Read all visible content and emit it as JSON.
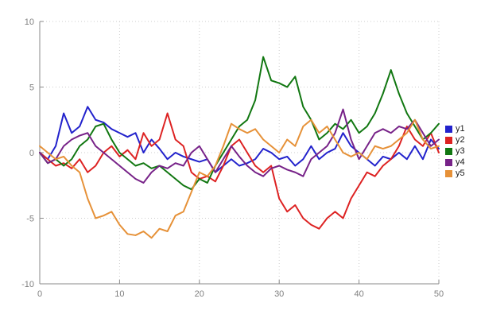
{
  "chart_data": {
    "type": "line",
    "title": "",
    "xlabel": "",
    "ylabel": "",
    "xlim": [
      0,
      50
    ],
    "ylim": [
      -10,
      10
    ],
    "x_ticks": [
      0,
      10,
      20,
      30,
      40,
      50
    ],
    "y_ticks": [
      -10,
      -5,
      0,
      5,
      10
    ],
    "grid": "dotted",
    "legend_position": "right-outside",
    "x": [
      0,
      1,
      2,
      3,
      4,
      5,
      6,
      7,
      8,
      9,
      10,
      11,
      12,
      13,
      14,
      15,
      16,
      17,
      18,
      19,
      20,
      21,
      22,
      23,
      24,
      25,
      26,
      27,
      28,
      29,
      30,
      31,
      32,
      33,
      34,
      35,
      36,
      37,
      38,
      39,
      40,
      41,
      42,
      43,
      44,
      45,
      46,
      47,
      48,
      49,
      50
    ],
    "series": [
      {
        "name": "y1",
        "color": "#2222cc",
        "values": [
          0.0,
          -0.5,
          0.5,
          3.0,
          1.5,
          2.0,
          3.5,
          2.5,
          2.3,
          1.8,
          1.5,
          1.2,
          1.5,
          0.0,
          1.0,
          0.3,
          -0.5,
          0.0,
          -0.3,
          -0.5,
          -0.7,
          -0.5,
          -1.5,
          -1.0,
          -0.5,
          -1.0,
          -0.8,
          -0.5,
          0.3,
          0.0,
          -0.5,
          -0.3,
          -1.0,
          -0.5,
          0.5,
          -0.5,
          0.0,
          0.3,
          1.5,
          0.5,
          0.0,
          -0.5,
          -1.0,
          -0.3,
          -0.5,
          0.0,
          -0.5,
          0.5,
          -0.5,
          1.0,
          0.3
        ]
      },
      {
        "name": "y2",
        "color": "#dd2222",
        "values": [
          0.0,
          -0.5,
          -1.0,
          -0.8,
          -1.2,
          -0.5,
          -1.5,
          -1.0,
          0.0,
          0.5,
          -0.3,
          0.2,
          -0.5,
          1.5,
          0.5,
          1.0,
          3.0,
          1.0,
          0.5,
          -1.5,
          -2.0,
          -1.8,
          -2.2,
          -1.0,
          0.5,
          1.0,
          0.0,
          -1.0,
          -1.5,
          -1.0,
          -3.5,
          -4.5,
          -4.0,
          -5.0,
          -5.5,
          -5.8,
          -5.0,
          -4.5,
          -5.0,
          -3.5,
          -2.5,
          -1.5,
          -1.8,
          -1.0,
          -0.5,
          0.5,
          2.0,
          1.0,
          0.5,
          1.5,
          0.0
        ]
      },
      {
        "name": "y3",
        "color": "#117711",
        "values": [
          0.0,
          -0.8,
          -0.5,
          -1.0,
          -0.5,
          0.5,
          1.0,
          2.0,
          2.2,
          1.0,
          0.0,
          -0.5,
          -1.0,
          -0.8,
          -1.2,
          -1.0,
          -1.5,
          -2.0,
          -2.5,
          -2.8,
          -2.0,
          -2.3,
          -1.0,
          0.0,
          1.0,
          2.0,
          2.5,
          4.0,
          7.3,
          5.5,
          5.3,
          5.0,
          5.8,
          3.5,
          2.5,
          1.0,
          1.5,
          2.2,
          1.8,
          2.5,
          1.5,
          2.0,
          3.0,
          4.5,
          6.3,
          4.5,
          3.0,
          2.0,
          1.0,
          1.5,
          2.2
        ]
      },
      {
        "name": "y4",
        "color": "#772288",
        "values": [
          0.0,
          -0.8,
          -0.5,
          0.5,
          1.0,
          1.3,
          1.5,
          0.5,
          0.0,
          -0.5,
          -1.0,
          -1.5,
          -2.0,
          -2.3,
          -1.5,
          -1.0,
          -1.2,
          -0.8,
          -1.0,
          0.0,
          0.5,
          -0.5,
          -1.5,
          -0.5,
          0.5,
          -0.3,
          -1.0,
          -1.5,
          -1.8,
          -1.2,
          -1.0,
          -1.3,
          -1.5,
          -1.8,
          -0.5,
          0.0,
          0.5,
          1.5,
          3.3,
          1.0,
          -0.5,
          0.5,
          1.5,
          1.8,
          1.5,
          2.0,
          1.8,
          2.5,
          1.5,
          0.5,
          1.0
        ]
      },
      {
        "name": "y5",
        "color": "#e69138",
        "values": [
          0.5,
          0.0,
          -0.5,
          -0.3,
          -1.0,
          -1.5,
          -3.5,
          -5.0,
          -4.8,
          -4.5,
          -5.5,
          -6.2,
          -6.3,
          -6.0,
          -6.5,
          -5.8,
          -6.0,
          -4.8,
          -4.5,
          -3.0,
          -1.5,
          -1.8,
          -1.0,
          0.5,
          2.2,
          1.8,
          1.5,
          1.8,
          1.0,
          0.5,
          0.0,
          1.0,
          0.5,
          2.0,
          2.5,
          1.5,
          2.0,
          1.0,
          0.0,
          -0.3,
          0.0,
          -0.5,
          0.5,
          0.3,
          0.5,
          1.0,
          1.5,
          2.5,
          1.0,
          0.3,
          0.5
        ]
      }
    ]
  }
}
